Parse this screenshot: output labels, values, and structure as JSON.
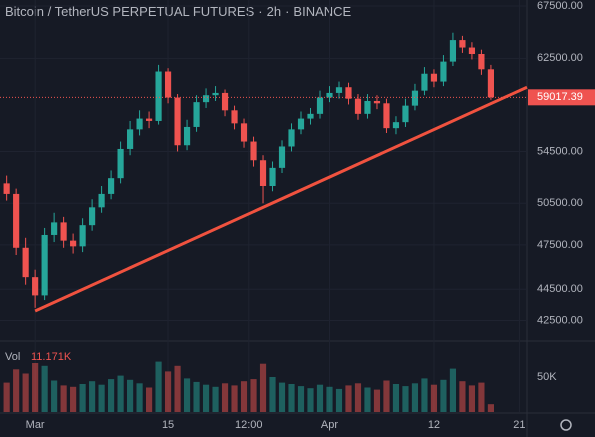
{
  "chart_data": {
    "type": "candlestick",
    "symbol": "Bitcoin / TetherUS PERPETUAL FUTURES",
    "interval": "2h",
    "exchange": "BINANCE",
    "x": [
      -3,
      -2,
      -1,
      0,
      1,
      2,
      3,
      4,
      5,
      6,
      7,
      8,
      9,
      10,
      11,
      12,
      13,
      14,
      15,
      16,
      17,
      18,
      19,
      20,
      21,
      22,
      23,
      24,
      25,
      26,
      27,
      28,
      29,
      30,
      31,
      32,
      33,
      34,
      35,
      36,
      37,
      38,
      39,
      40,
      41,
      42,
      43,
      44,
      45,
      46,
      47,
      48
    ],
    "open": [
      52000,
      51200,
      47300,
      45300,
      44100,
      48200,
      49100,
      47800,
      47400,
      48900,
      50200,
      51200,
      52400,
      54700,
      56300,
      57200,
      57000,
      61300,
      59000,
      55000,
      56500,
      58600,
      59200,
      59400,
      57900,
      56800,
      55300,
      53800,
      51800,
      53200,
      54900,
      56300,
      57200,
      57600,
      59000,
      59400,
      59900,
      58900,
      57600,
      58700,
      58500,
      56400,
      56900,
      58300,
      59600,
      61100,
      60400,
      62200,
      64200,
      63500,
      62900,
      61500
    ],
    "high": [
      52600,
      51600,
      48000,
      45800,
      48700,
      49800,
      49500,
      48300,
      49400,
      50800,
      51800,
      53000,
      55300,
      57000,
      57900,
      57800,
      61900,
      61600,
      59300,
      57100,
      59200,
      59800,
      60000,
      59700,
      58300,
      57200,
      55700,
      54200,
      53700,
      55400,
      56800,
      57800,
      58100,
      59600,
      60000,
      60400,
      60300,
      59300,
      59300,
      59200,
      58900,
      57400,
      58900,
      60200,
      61700,
      61500,
      62800,
      64900,
      64600,
      64000,
      63300,
      61900
    ],
    "low": [
      50700,
      46800,
      44800,
      43300,
      43800,
      47700,
      47300,
      46900,
      47000,
      48500,
      49800,
      50800,
      52000,
      54200,
      55800,
      56400,
      56700,
      58500,
      54500,
      54600,
      56100,
      58100,
      58700,
      57400,
      56300,
      54800,
      53300,
      50500,
      51400,
      52800,
      54500,
      55900,
      56700,
      57200,
      58600,
      58900,
      58400,
      57100,
      57200,
      58000,
      56000,
      55900,
      56500,
      57900,
      59200,
      59900,
      60000,
      61800,
      63000,
      62400,
      61000,
      58800
    ],
    "close": [
      51200,
      47300,
      45300,
      44100,
      48200,
      49100,
      47800,
      47400,
      48900,
      50200,
      51200,
      52400,
      54700,
      56300,
      57200,
      57000,
      61300,
      59000,
      55000,
      56500,
      58600,
      59200,
      59400,
      57900,
      56800,
      55300,
      53800,
      51800,
      53200,
      54900,
      56300,
      57200,
      57600,
      59000,
      59400,
      59900,
      58900,
      57600,
      58700,
      58500,
      56400,
      56900,
      58300,
      59600,
      61100,
      60400,
      62200,
      64200,
      63500,
      62900,
      61500,
      59017.39
    ],
    "up_color": "#26a69a",
    "down_color": "#ef5350",
    "last_price": 59017.39,
    "log_scale": true,
    "ylim": [
      41300,
      68100
    ],
    "yticks": [
      {
        "value": 67500,
        "label": "67500.00"
      },
      {
        "value": 62500,
        "label": "62500.00"
      },
      {
        "value": 54500,
        "label": "54500.00"
      },
      {
        "value": 50500,
        "label": "50500.00"
      },
      {
        "value": 47500,
        "label": "47500.00"
      },
      {
        "value": 44500,
        "label": "44500.00"
      },
      {
        "value": 42500,
        "label": "42500.00"
      }
    ],
    "xlim": [
      -3.7,
      51.8
    ],
    "xticks": [
      {
        "value": 0,
        "label": "Mar"
      },
      {
        "value": 14,
        "label": "15"
      },
      {
        "value": 22.5,
        "label": "12:00"
      },
      {
        "value": 31,
        "label": "Apr"
      },
      {
        "value": 42,
        "label": "12"
      },
      {
        "value": 51,
        "label": "21"
      }
    ],
    "trend_line": {
      "x": [
        0,
        51.8
      ],
      "y": [
        43100,
        59900
      ],
      "color": "#f0523f"
    },
    "volume": {
      "label": "Vol",
      "values": [
        42000,
        61000,
        55000,
        70000,
        66000,
        45000,
        38000,
        36000,
        40000,
        44000,
        39000,
        47000,
        52000,
        46000,
        41000,
        35000,
        72000,
        58000,
        66000,
        48000,
        43000,
        39000,
        36000,
        41000,
        38000,
        44000,
        47000,
        69000,
        50000,
        42000,
        40000,
        37000,
        34000,
        39000,
        36000,
        33000,
        38000,
        41000,
        35000,
        32000,
        45000,
        40000,
        37000,
        41000,
        48000,
        39000,
        46000,
        62000,
        44000,
        38000,
        42000,
        11171
      ],
      "value_labels": [
        null,
        null,
        null,
        null,
        null,
        null,
        null,
        null,
        null,
        null,
        null,
        null,
        null,
        null,
        null,
        null,
        null,
        null,
        null,
        null,
        null,
        null,
        null,
        null,
        null,
        null,
        null,
        null,
        null,
        null,
        null,
        null,
        null,
        null,
        null,
        null,
        null,
        null,
        null,
        null,
        null,
        null,
        null,
        null,
        null,
        null,
        null,
        null,
        null,
        null,
        null,
        "11.171K"
      ],
      "ylim": [
        0,
        100000
      ],
      "yticks": [
        {
          "value": 50000,
          "label": "50K"
        }
      ]
    }
  }
}
